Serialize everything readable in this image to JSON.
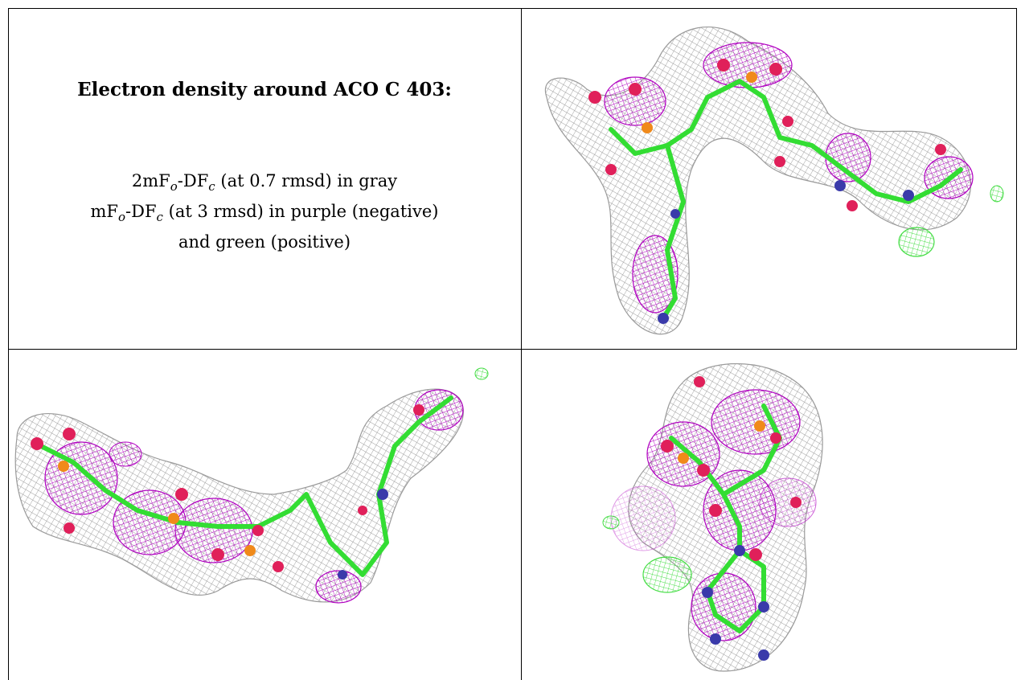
{
  "caption": {
    "title": "Electron density around ACO C 403:",
    "line1_a": "2mF",
    "line1_sub1": "o",
    "line1_b": "-DF",
    "line1_sub2": "c",
    "line1_c": " (at 0.7 rmsd) in gray",
    "line2_a": "mF",
    "line2_sub1": "o",
    "line2_b": "-DF",
    "line2_sub2": "c",
    "line2_c": " (at 3 rmsd) in purple (negative)",
    "line3": "and green (positive)"
  },
  "colors": {
    "density_2fofc": "#9a9a9a",
    "density_negative": "#b000c0",
    "density_positive": "#44dd44",
    "carbon": "#33dd33",
    "oxygen": "#e0205a",
    "nitrogen": "#3a3aaa",
    "phosphorus": "#f08a1a"
  }
}
